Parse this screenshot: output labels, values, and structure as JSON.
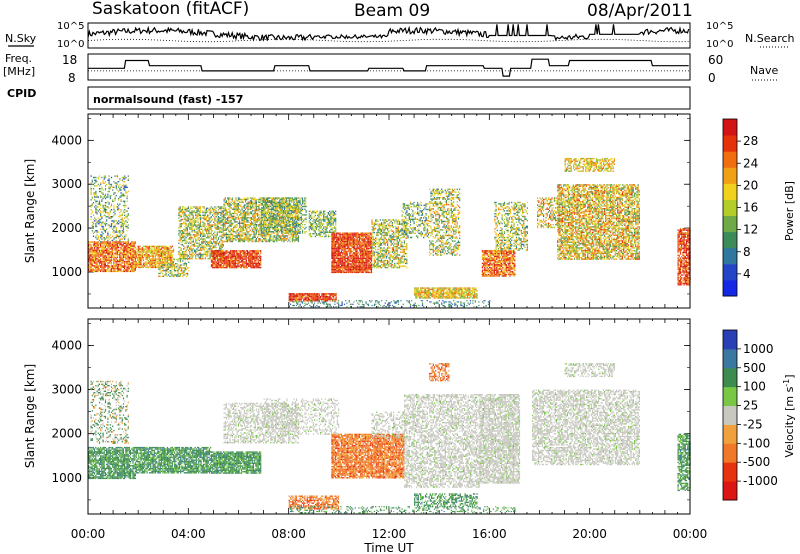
{
  "header": {
    "station": "Saskatoon (fitACF)",
    "beam": "Beam 09",
    "date": "08/Apr/2011"
  },
  "status_panels": {
    "nsky_label": "N.Sky",
    "nsearch_label": "N.Search",
    "noise_ticks_left": [
      "10^5",
      "10^0"
    ],
    "noise_ticks_right": [
      "10^5",
      "10^0"
    ],
    "freq_label": "Freq.",
    "freq_unit": "[MHz]",
    "freq_ticks": [
      "18",
      "8"
    ],
    "nave_label": "Nave",
    "nave_ticks": [
      "60",
      "0"
    ],
    "cpid_label": "CPID",
    "cpid_value": "normalsound (fast) -157"
  },
  "chart_data": [
    {
      "type": "heatmap",
      "name": "power",
      "ylabel": "Slant Range [km]",
      "yticks": [
        "4000",
        "3000",
        "2000",
        "1000"
      ],
      "ylim": [
        180,
        4600
      ],
      "colorbar": {
        "label": "Power [dB]",
        "ticks": [
          "28",
          "24",
          "20",
          "16",
          "12",
          "8",
          "4"
        ],
        "range": [
          0,
          32
        ],
        "colors": [
          "#1428e6",
          "#2346c8",
          "#2e78a0",
          "#3c8c5a",
          "#6eaa46",
          "#b4cd28",
          "#f0d21e",
          "#f0a014",
          "#f06e0f",
          "#e6320a",
          "#d21414"
        ]
      }
    },
    {
      "type": "heatmap",
      "name": "velocity",
      "ylabel": "Slant Range [km]",
      "yticks": [
        "4000",
        "3000",
        "2000",
        "1000"
      ],
      "ylim": [
        180,
        4600
      ],
      "xlabel": "Time UT",
      "xticks": [
        "00:00",
        "04:00",
        "08:00",
        "12:00",
        "16:00",
        "20:00",
        "00:00"
      ],
      "colorbar": {
        "label": "Velocity [m s",
        "label_sup": "-1",
        "ticks": [
          "1000",
          "500",
          "100",
          "25",
          "-25",
          "-100",
          "-500",
          "-1000"
        ],
        "colors": [
          "#2840b4",
          "#3a78a0",
          "#3c8c50",
          "#78c846",
          "#c8c8c0",
          "#f0a03c",
          "#f07828",
          "#e6320f",
          "#dc1414"
        ]
      }
    }
  ]
}
